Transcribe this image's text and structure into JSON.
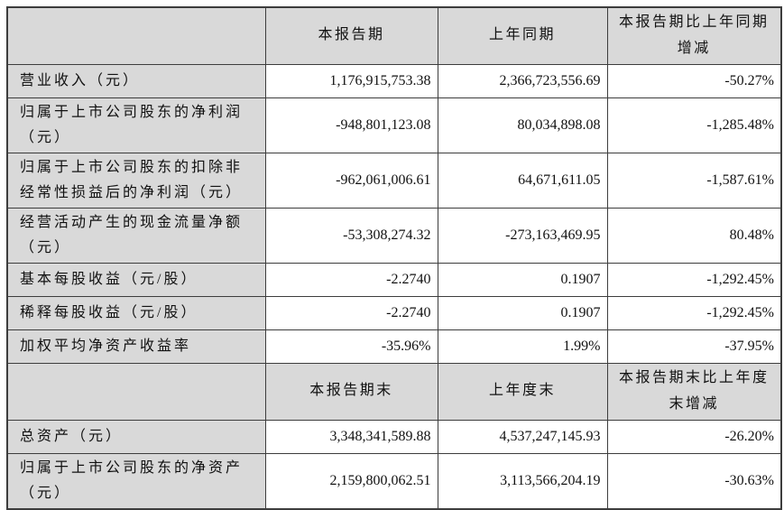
{
  "table": {
    "header1": {
      "c0": "",
      "c1": "本报告期",
      "c2": "上年同期",
      "c3": "本报告期比上年同期增减"
    },
    "rows1": [
      {
        "label": "营业收入（元）",
        "current": "1,176,915,753.38",
        "prior": "2,366,723,556.69",
        "change": "-50.27%"
      },
      {
        "label": "归属于上市公司股东的净利润（元）",
        "current": "-948,801,123.08",
        "prior": "80,034,898.08",
        "change": "-1,285.48%"
      },
      {
        "label": "归属于上市公司股东的扣除非经常性损益后的净利润（元）",
        "current": "-962,061,006.61",
        "prior": "64,671,611.05",
        "change": "-1,587.61%"
      },
      {
        "label": "经营活动产生的现金流量净额（元）",
        "current": "-53,308,274.32",
        "prior": "-273,163,469.95",
        "change": "80.48%"
      },
      {
        "label": "基本每股收益（元/股）",
        "current": "-2.2740",
        "prior": "0.1907",
        "change": "-1,292.45%"
      },
      {
        "label": "稀释每股收益（元/股）",
        "current": "-2.2740",
        "prior": "0.1907",
        "change": "-1,292.45%"
      },
      {
        "label": "加权平均净资产收益率",
        "current": "-35.96%",
        "prior": "1.99%",
        "change": "-37.95%"
      }
    ],
    "header2": {
      "c0": "",
      "c1": "本报告期末",
      "c2": "上年度末",
      "c3": "本报告期末比上年度末增减"
    },
    "rows2": [
      {
        "label": "总资产（元）",
        "current": "3,348,341,589.88",
        "prior": "4,537,247,145.93",
        "change": "-26.20%"
      },
      {
        "label": "归属于上市公司股东的净资产（元）",
        "current": "2,159,800,062.51",
        "prior": "3,113,566,204.19",
        "change": "-30.63%"
      }
    ],
    "colors": {
      "header_bg": "#d9d9d9",
      "cell_bg": "#ffffff",
      "border": "#3d3d3d",
      "text": "#111111"
    }
  }
}
